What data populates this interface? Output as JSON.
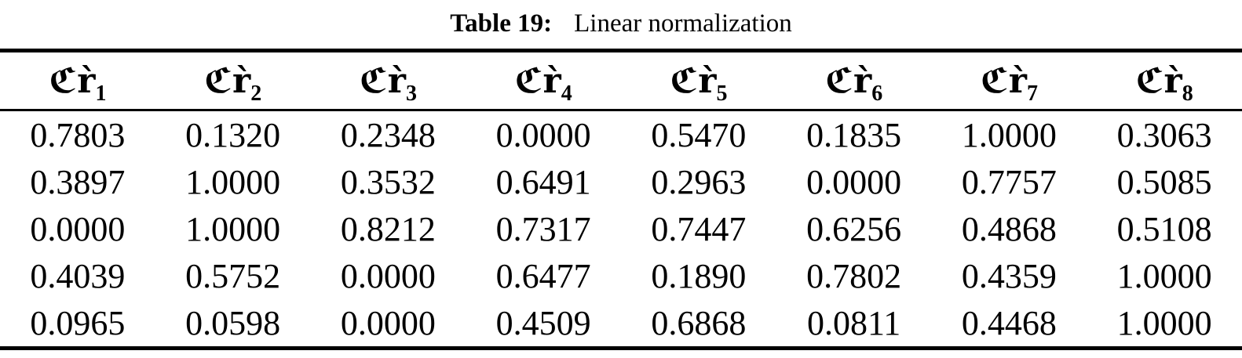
{
  "colors": {
    "text": "#000000",
    "background": "#ffffff",
    "rule": "#000000"
  },
  "caption": {
    "label": "Table 19:",
    "text": "Linear normalization"
  },
  "table": {
    "columns": [
      {
        "symbol": "ℭr̀",
        "subscript": "1"
      },
      {
        "symbol": "ℭr̀",
        "subscript": "2"
      },
      {
        "symbol": "ℭr̀",
        "subscript": "3"
      },
      {
        "symbol": "ℭr̀",
        "subscript": "4"
      },
      {
        "symbol": "ℭr̀",
        "subscript": "5"
      },
      {
        "symbol": "ℭr̀",
        "subscript": "6"
      },
      {
        "symbol": "ℭr̀",
        "subscript": "7"
      },
      {
        "symbol": "ℭr̀",
        "subscript": "8"
      }
    ],
    "rows": [
      [
        "0.7803",
        "0.1320",
        "0.2348",
        "0.0000",
        "0.5470",
        "0.1835",
        "1.0000",
        "0.3063"
      ],
      [
        "0.3897",
        "1.0000",
        "0.3532",
        "0.6491",
        "0.2963",
        "0.0000",
        "0.7757",
        "0.5085"
      ],
      [
        "0.0000",
        "1.0000",
        "0.8212",
        "0.7317",
        "0.7447",
        "0.6256",
        "0.4868",
        "0.5108"
      ],
      [
        "0.4039",
        "0.5752",
        "0.0000",
        "0.6477",
        "0.1890",
        "0.7802",
        "0.4359",
        "1.0000"
      ],
      [
        "0.0965",
        "0.0598",
        "0.0000",
        "0.4509",
        "0.6868",
        "0.0811",
        "0.4468",
        "1.0000"
      ]
    ]
  }
}
